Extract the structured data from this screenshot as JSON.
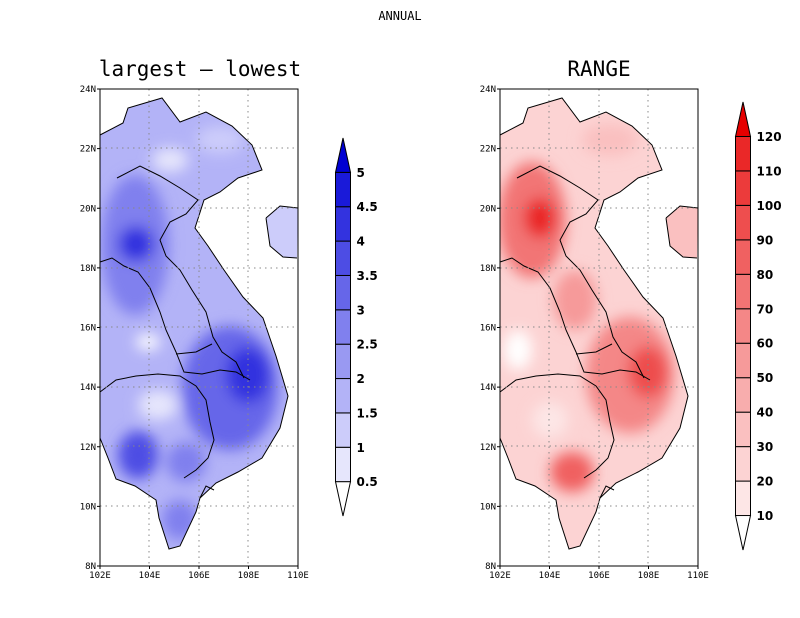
{
  "figure": {
    "title": "ANNUAL"
  },
  "panels": [
    {
      "title": "largest – lowest",
      "lon_ticks": [
        "102E",
        "104E",
        "106E",
        "108E",
        "110E"
      ],
      "lat_ticks": [
        "8N",
        "10N",
        "12N",
        "14N",
        "16N",
        "18N",
        "20N",
        "22N",
        "24N"
      ],
      "colorbar": {
        "levels": [
          "0.5",
          "1",
          "1.5",
          "2",
          "2.5",
          "3",
          "3.5",
          "4",
          "4.5",
          "5"
        ],
        "colors": [
          "#ffffff",
          "#e6e6fc",
          "#ccccfa",
          "#b3b3f7",
          "#9999f2",
          "#8080ee",
          "#6666e9",
          "#4d4de4",
          "#3333df",
          "#1a1ad9",
          "#0000d2"
        ]
      }
    },
    {
      "title": "RANGE",
      "lon_ticks": [
        "102E",
        "104E",
        "106E",
        "108E",
        "110E"
      ],
      "lat_ticks": [
        "8N",
        "10N",
        "12N",
        "14N",
        "16N",
        "18N",
        "20N",
        "22N",
        "24N"
      ],
      "colorbar": {
        "levels": [
          "10",
          "20",
          "30",
          "40",
          "50",
          "60",
          "70",
          "80",
          "90",
          "100",
          "110",
          "120"
        ],
        "colors": [
          "#ffffff",
          "#fde6e6",
          "#fcd3d3",
          "#fac0c0",
          "#f8adad",
          "#f69a9a",
          "#f48787",
          "#f27474",
          "#f06161",
          "#ee4e4e",
          "#ec3b3b",
          "#ea2828",
          "#e60000"
        ]
      }
    }
  ]
}
